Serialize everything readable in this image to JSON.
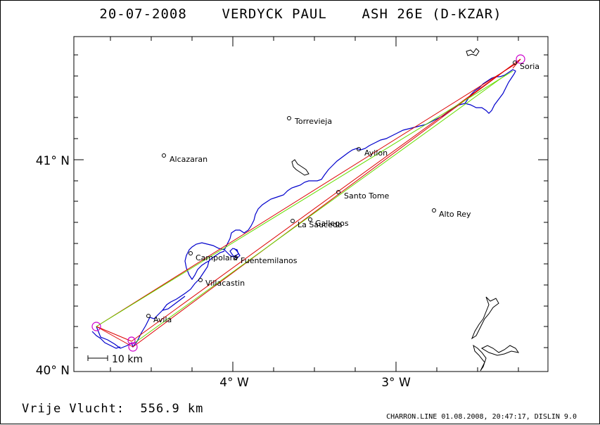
{
  "header": {
    "title": "20-07-2008    VERDYCK PAUL    ASH 26E (D-KZAR)"
  },
  "map": {
    "lat_labels": [
      "41° N",
      "40° N"
    ],
    "lon_labels": [
      "4° W",
      "3° W"
    ],
    "scale_label": "10 km",
    "places": [
      {
        "name": "Soria"
      },
      {
        "name": "Torrevieja"
      },
      {
        "name": "Alcazaran"
      },
      {
        "name": "Ayllon"
      },
      {
        "name": "Santo Tome"
      },
      {
        "name": "Alto Rey"
      },
      {
        "name": "La Sauceda"
      },
      {
        "name": "Gallegos"
      },
      {
        "name": "Campolara"
      },
      {
        "name": "Fuentemilanos"
      },
      {
        "name": "Villacastin"
      },
      {
        "name": "Avila"
      }
    ],
    "colors": {
      "track": "#0000cc",
      "task": "#dd0000",
      "best": "#66dd00",
      "turnpoint": "#cc00cc"
    }
  },
  "footer": {
    "distance": "Vrije Vlucht:  556.9 km",
    "credit": "CHARRON.LINE 01.08.2008, 20:47:17, DISLIN 9.0"
  }
}
